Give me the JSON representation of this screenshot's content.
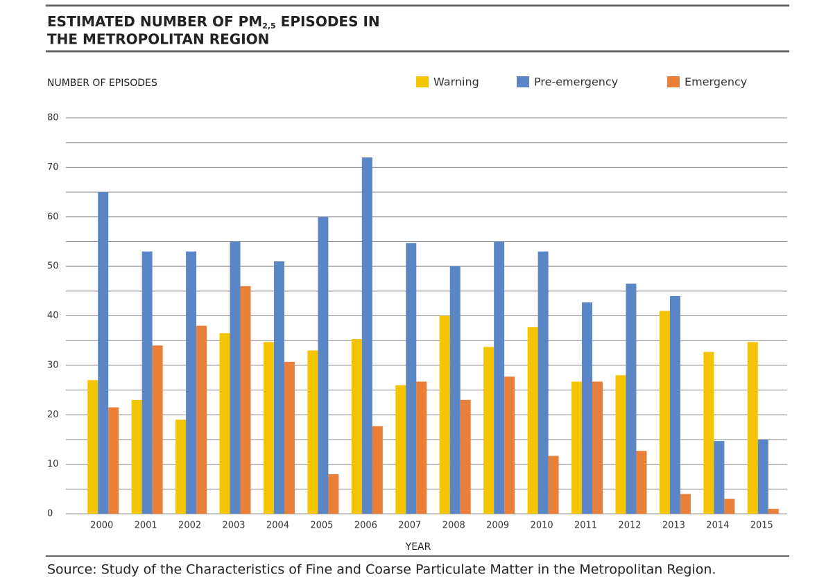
{
  "chart_data": {
    "type": "bar",
    "title_line1_main": "ESTIMATED NUMBER OF PM",
    "title_subscript": "2,5",
    "title_line1_end": " EPISODES IN",
    "title_line2": "THE METROPOLITAN REGION",
    "y_label": "NUMBER OF EPISODES",
    "x_label": "YEAR",
    "source": "Source: Study of the Characteristics of Fine and Coarse Particulate Matter in the Metropolitan Region.",
    "categories": [
      "2000",
      "2001",
      "2002",
      "2003",
      "2004",
      "2005",
      "2006",
      "2007",
      "2008",
      "2009",
      "2010",
      "2011",
      "2012",
      "2013",
      "2014",
      "2015"
    ],
    "series": [
      {
        "name": "Warning",
        "color": "#f5c400",
        "values": [
          27,
          23,
          19,
          36.5,
          34.7,
          33,
          35.3,
          26,
          40,
          33.7,
          37.7,
          26.7,
          28,
          41,
          32.7,
          34.7
        ]
      },
      {
        "name": "Pre-emergency",
        "color": "#5b86c5",
        "values": [
          65,
          53,
          53,
          55,
          51,
          60,
          72,
          54.7,
          50,
          55,
          53,
          42.7,
          46.5,
          44,
          14.7,
          15
        ]
      },
      {
        "name": "Emergency",
        "color": "#e8803a",
        "values": [
          21.5,
          34,
          38,
          46,
          30.7,
          8,
          17.7,
          26.7,
          23,
          27.7,
          11.7,
          26.7,
          12.7,
          4,
          3,
          1
        ]
      }
    ],
    "ylim": [
      0,
      80
    ],
    "yticks": [
      0,
      10,
      20,
      30,
      40,
      50,
      60,
      70,
      80
    ],
    "yminor": [
      5,
      15,
      25,
      35,
      45,
      55,
      65,
      75
    ],
    "grid": true,
    "legend": "top-right"
  }
}
